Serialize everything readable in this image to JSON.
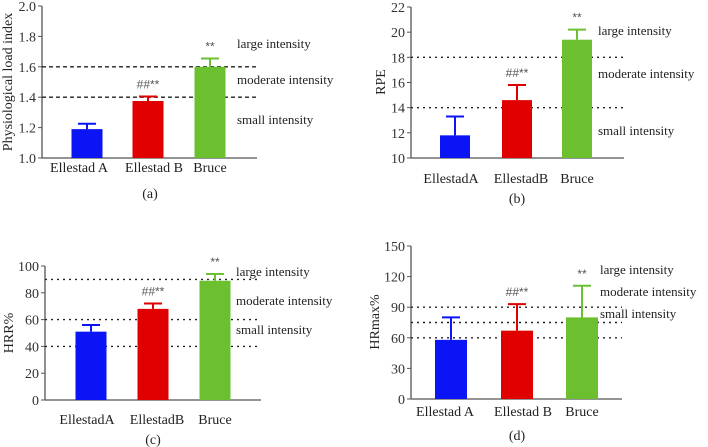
{
  "chart_data": [
    {
      "type": "bar",
      "panel_label": "(a)",
      "ylabel": "Physiological load index",
      "ylim": [
        1.0,
        2.0
      ],
      "yticks": [
        "1.0",
        "1.2",
        "1.4",
        "1.6",
        "1.8",
        "2.0"
      ],
      "categories": [
        "Ellestad A",
        "Ellestad B",
        "Bruce"
      ],
      "values": [
        1.19,
        1.375,
        1.6
      ],
      "error_upper": [
        1.225,
        1.405,
        1.655
      ],
      "significance": [
        "",
        "##**",
        "**"
      ],
      "colors": [
        "#0a14f5",
        "#e00000",
        "#6cc030"
      ],
      "reference_lines": [
        1.4,
        1.6
      ],
      "line_style": "dashed",
      "annotations": [
        "large intensity",
        "moderate intensity",
        "small intensity"
      ]
    },
    {
      "type": "bar",
      "panel_label": "(b)",
      "ylabel": "RPE",
      "ylim": [
        10,
        22
      ],
      "yticks": [
        "10",
        "12",
        "14",
        "16",
        "18",
        "20",
        "22"
      ],
      "categories": [
        "EllestadA",
        "EllestadB",
        "Bruce"
      ],
      "values": [
        11.8,
        14.6,
        19.4
      ],
      "error_upper": [
        13.3,
        15.8,
        20.2
      ],
      "significance": [
        "",
        "##**",
        "**"
      ],
      "colors": [
        "#0a14f5",
        "#e00000",
        "#6cc030"
      ],
      "reference_lines": [
        14,
        18
      ],
      "line_style": "dotted",
      "annotations": [
        "large intensity",
        "moderate intensity",
        "small intensity"
      ]
    },
    {
      "type": "bar",
      "panel_label": "(c)",
      "ylabel": "HRR%",
      "ylim": [
        0,
        100
      ],
      "yticks": [
        "0",
        "20",
        "40",
        "60",
        "80",
        "100"
      ],
      "categories": [
        "EllestadA",
        "EllestadB",
        "Bruce"
      ],
      "values": [
        51,
        68,
        89
      ],
      "error_upper": [
        56,
        72,
        94
      ],
      "significance": [
        "",
        "##**",
        "**"
      ],
      "colors": [
        "#0a14f5",
        "#e00000",
        "#6cc030"
      ],
      "reference_lines": [
        40,
        60,
        90
      ],
      "line_style": "dotted",
      "annotations": [
        "large intensity",
        "moderate intensity",
        "small intensity"
      ]
    },
    {
      "type": "bar",
      "panel_label": "(d)",
      "ylabel": "HRmax%",
      "ylim": [
        0,
        150
      ],
      "yticks": [
        "0",
        "30",
        "60",
        "90",
        "120",
        "150"
      ],
      "categories": [
        "Ellestad A",
        "Ellestad B",
        "Bruce"
      ],
      "values": [
        58,
        67,
        80
      ],
      "error_upper": [
        80,
        93,
        111
      ],
      "significance": [
        "",
        "##**",
        "**"
      ],
      "colors": [
        "#0a14f5",
        "#e00000",
        "#6cc030"
      ],
      "reference_lines": [
        60,
        75,
        90
      ],
      "line_style": "dotted",
      "annotations": [
        "large intensity",
        "moderate intensity",
        "small intensity"
      ]
    }
  ]
}
